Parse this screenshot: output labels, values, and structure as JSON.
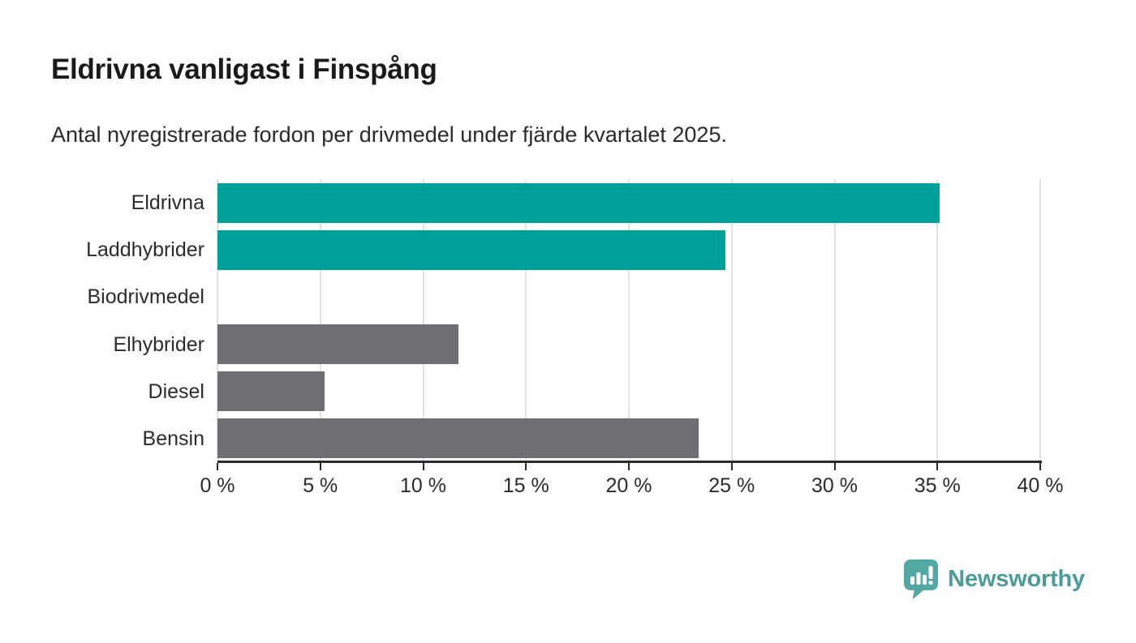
{
  "header": {
    "title": "Eldrivna vanligast i Finspång",
    "subtitle": "Antal nyregistrerade fordon per drivmedel under fjärde kvartalet 2025."
  },
  "chart_data": {
    "type": "bar",
    "orientation": "horizontal",
    "title": "Eldrivna vanligast i Finspång",
    "subtitle": "Antal nyregistrerade fordon per drivmedel under fjärde kvartalet 2025.",
    "categories": [
      "Eldrivna",
      "Laddhybrider",
      "Biodrivmedel",
      "Elhybrider",
      "Diesel",
      "Bensin"
    ],
    "values": [
      35.1,
      24.7,
      0,
      11.7,
      5.2,
      23.4
    ],
    "unit": "%",
    "xlim": [
      0,
      40
    ],
    "x_ticks": [
      0,
      5,
      10,
      15,
      20,
      25,
      30,
      35,
      40
    ],
    "x_tick_labels": [
      "0 %",
      "5 %",
      "10 %",
      "15 %",
      "20 %",
      "25 %",
      "30 %",
      "35 %",
      "40 %"
    ],
    "bar_colors": [
      "#00A09A",
      "#00A09A",
      "#6E6E73",
      "#6E6E73",
      "#6E6E73",
      "#6E6E73"
    ],
    "highlight_color": "#00A09A",
    "default_color": "#6E6E73",
    "gridline_color": "#E2E2E2",
    "axis_color": "#2B2B2B",
    "grid": true,
    "legend": false,
    "xlabel": "",
    "ylabel": ""
  },
  "branding": {
    "logo_text": "Newsworthy",
    "logo_text_color": "#4A9C99",
    "logo_icon": "newsworthy-pin-bar-chart-icon",
    "logo_icon_color": "#52A8A2"
  }
}
